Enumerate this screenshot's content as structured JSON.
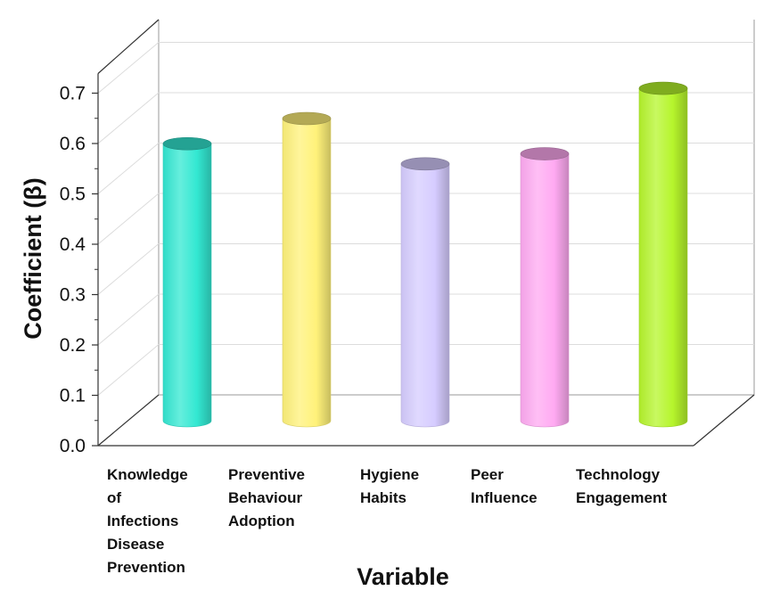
{
  "chart_data": {
    "type": "bar",
    "xlabel": "Variable",
    "ylabel": "Coefficient (β)",
    "ylim": [
      0,
      0.7
    ],
    "yticks": [
      "0.0",
      "0.1",
      "0.2",
      "0.3",
      "0.4",
      "0.5",
      "0.6",
      "0.7"
    ],
    "categories": [
      "Knowledge of Infections Disease Prevention",
      "Preventive Behaviour Adoption",
      "Hygiene Habits",
      "Peer Influence",
      "Technology Engagement"
    ],
    "category_label_lines": [
      [
        "Knowledge",
        "of",
        "Infections",
        "Disease",
        "Prevention"
      ],
      [
        "Preventive",
        "Behaviour",
        "Adoption"
      ],
      [
        "Hygiene",
        "Habits"
      ],
      [
        "Peer",
        "Influence"
      ],
      [
        "Technology",
        "Engagement"
      ]
    ],
    "values": [
      0.55,
      0.6,
      0.51,
      0.53,
      0.66
    ],
    "colors": [
      "#33e8d2",
      "#fff27a",
      "#d6ccff",
      "#ffaaf2",
      "#b6f52c"
    ],
    "grid": true,
    "style": "3d-cylinder"
  }
}
